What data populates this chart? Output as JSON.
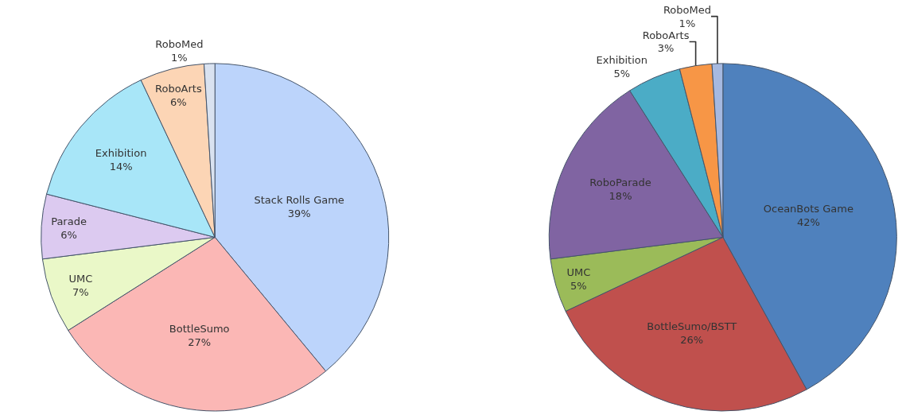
{
  "chart_data": [
    {
      "type": "pie",
      "categories": [
        "Stack Rolls Game",
        "BottleSumo",
        "UMC",
        "Parade",
        "Exhibition",
        "RoboArts",
        "RoboMed"
      ],
      "values": [
        39,
        27,
        7,
        6,
        14,
        6,
        1
      ],
      "value_labels": [
        "39%",
        "27%",
        "7%",
        "6%",
        "14%",
        "6%",
        "1%"
      ],
      "colors": [
        "#bcd4fb",
        "#fbb7b5",
        "#eaf8c8",
        "#dccaf0",
        "#a8e6f8",
        "#fcd5b5",
        "#d9e2f0"
      ],
      "legend": false
    },
    {
      "type": "pie",
      "categories": [
        "OceanBots Game",
        "BottleSumo/BSTT",
        "UMC",
        "RoboParade",
        "Exhibition",
        "RoboArts",
        "RoboMed"
      ],
      "values": [
        42,
        26,
        5,
        18,
        5,
        3,
        1
      ],
      "value_labels": [
        "42%",
        "26%",
        "5%",
        "18%",
        "5%",
        "3%",
        "1%"
      ],
      "colors": [
        "#4f81bd",
        "#c0504d",
        "#9bbb59",
        "#8064a2",
        "#4bacc6",
        "#f79646",
        "#a6b9e0"
      ],
      "legend": false
    }
  ]
}
